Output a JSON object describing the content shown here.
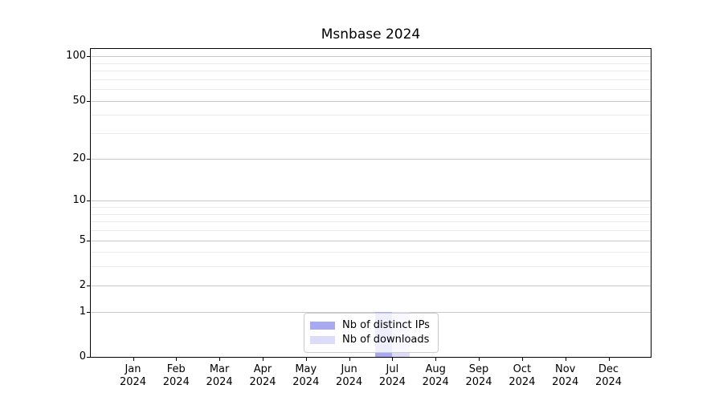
{
  "chart_data": {
    "type": "bar",
    "title": "Msnbase 2024",
    "xlabel": "",
    "ylabel": "",
    "categories": [
      "Jan 2024",
      "Feb 2024",
      "Mar 2024",
      "Apr 2024",
      "May 2024",
      "Jun 2024",
      "Jul 2024",
      "Aug 2024",
      "Sep 2024",
      "Oct 2024",
      "Nov 2024",
      "Dec 2024"
    ],
    "series": [
      {
        "name": "Nb of distinct IPs",
        "color": "#a9a9f1",
        "values": [
          0,
          0,
          0,
          0,
          0,
          0,
          1,
          0,
          0,
          0,
          0,
          0
        ]
      },
      {
        "name": "Nb of downloads",
        "color": "#dcdcf8",
        "values": [
          0,
          0,
          0,
          0,
          0,
          0,
          1,
          0,
          0,
          0,
          0,
          0
        ]
      }
    ],
    "yscale": "log10(value+1)",
    "y_ticks": [
      0,
      1,
      2,
      5,
      10,
      20,
      50,
      100
    ],
    "y_minor_gridlines": [
      3,
      4,
      6,
      7,
      8,
      9,
      30,
      40,
      60,
      70,
      80,
      90
    ],
    "ylim": [
      0,
      112
    ],
    "grid": "major and minor horizontal gridlines",
    "legend_position": "lower center",
    "colors": {
      "spine": "#000000",
      "major_grid": "#c9c9c9",
      "minor_grid": "#ebebeb",
      "background": "#ffffff",
      "legend_border": "#cccccc"
    }
  }
}
